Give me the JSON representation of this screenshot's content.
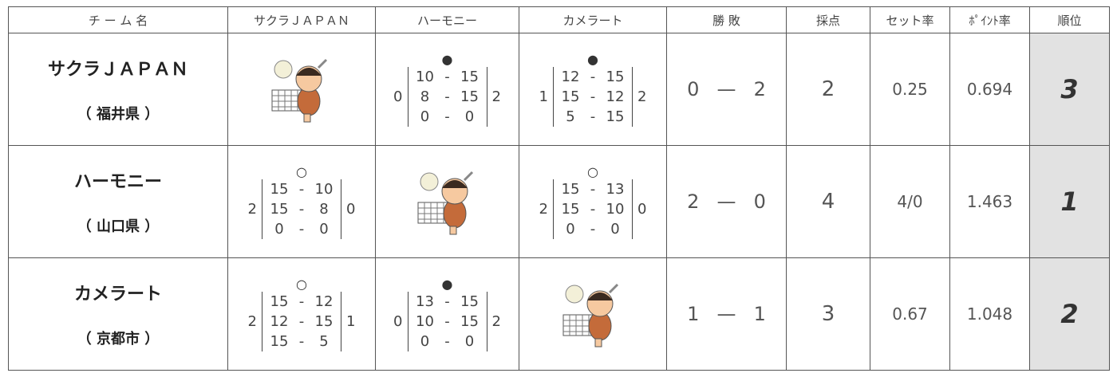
{
  "header": [
    "チ ー ム 名",
    "サクラＪＡＰＡＮ",
    "ハーモニー",
    "カメラート",
    "勝 敗",
    "採点",
    "セット率",
    "ﾎﾟｲﾝﾄ率",
    "順位"
  ],
  "teams": [
    {
      "name": "サクラＪＡＰＡＮ",
      "area": "（ 福井県 ）",
      "matches": [
        null,
        {
          "mark": "●",
          "left": "0",
          "scores": [
            [
              "10",
              "-",
              "15"
            ],
            [
              "8",
              "-",
              "15"
            ],
            [
              "0",
              "-",
              "0"
            ]
          ],
          "right": "2"
        },
        {
          "mark": "●",
          "left": "1",
          "scores": [
            [
              "12",
              "-",
              "15"
            ],
            [
              "15",
              "-",
              "12"
            ],
            [
              "5",
              "-",
              "15"
            ]
          ],
          "right": "2"
        }
      ],
      "record": [
        "0",
        "—",
        "2"
      ],
      "points": "2",
      "set_rate": "0.25",
      "point_rate": "0.694",
      "rank": "3"
    },
    {
      "name": "ハーモニー",
      "area": "（ 山口県 ）",
      "matches": [
        {
          "mark": "○",
          "left": "2",
          "scores": [
            [
              "15",
              "-",
              "10"
            ],
            [
              "15",
              "-",
              "8"
            ],
            [
              "0",
              "-",
              "0"
            ]
          ],
          "right": "0"
        },
        null,
        {
          "mark": "○",
          "left": "2",
          "scores": [
            [
              "15",
              "-",
              "13"
            ],
            [
              "15",
              "-",
              "10"
            ],
            [
              "0",
              "-",
              "0"
            ]
          ],
          "right": "0"
        }
      ],
      "record": [
        "2",
        "—",
        "0"
      ],
      "points": "4",
      "set_rate": "4/0",
      "point_rate": "1.463",
      "rank": "1"
    },
    {
      "name": "カメラート",
      "area": "（ 京都市 ）",
      "matches": [
        {
          "mark": "○",
          "left": "2",
          "scores": [
            [
              "15",
              "-",
              "12"
            ],
            [
              "12",
              "-",
              "15"
            ],
            [
              "15",
              "-",
              "5"
            ]
          ],
          "right": "1"
        },
        {
          "mark": "●",
          "left": "0",
          "scores": [
            [
              "13",
              "-",
              "15"
            ],
            [
              "10",
              "-",
              "15"
            ],
            [
              "0",
              "-",
              "0"
            ]
          ],
          "right": "2"
        },
        null
      ],
      "record": [
        "1",
        "—",
        "1"
      ],
      "points": "3",
      "set_rate": "0.67",
      "point_rate": "1.048",
      "rank": "2"
    }
  ]
}
